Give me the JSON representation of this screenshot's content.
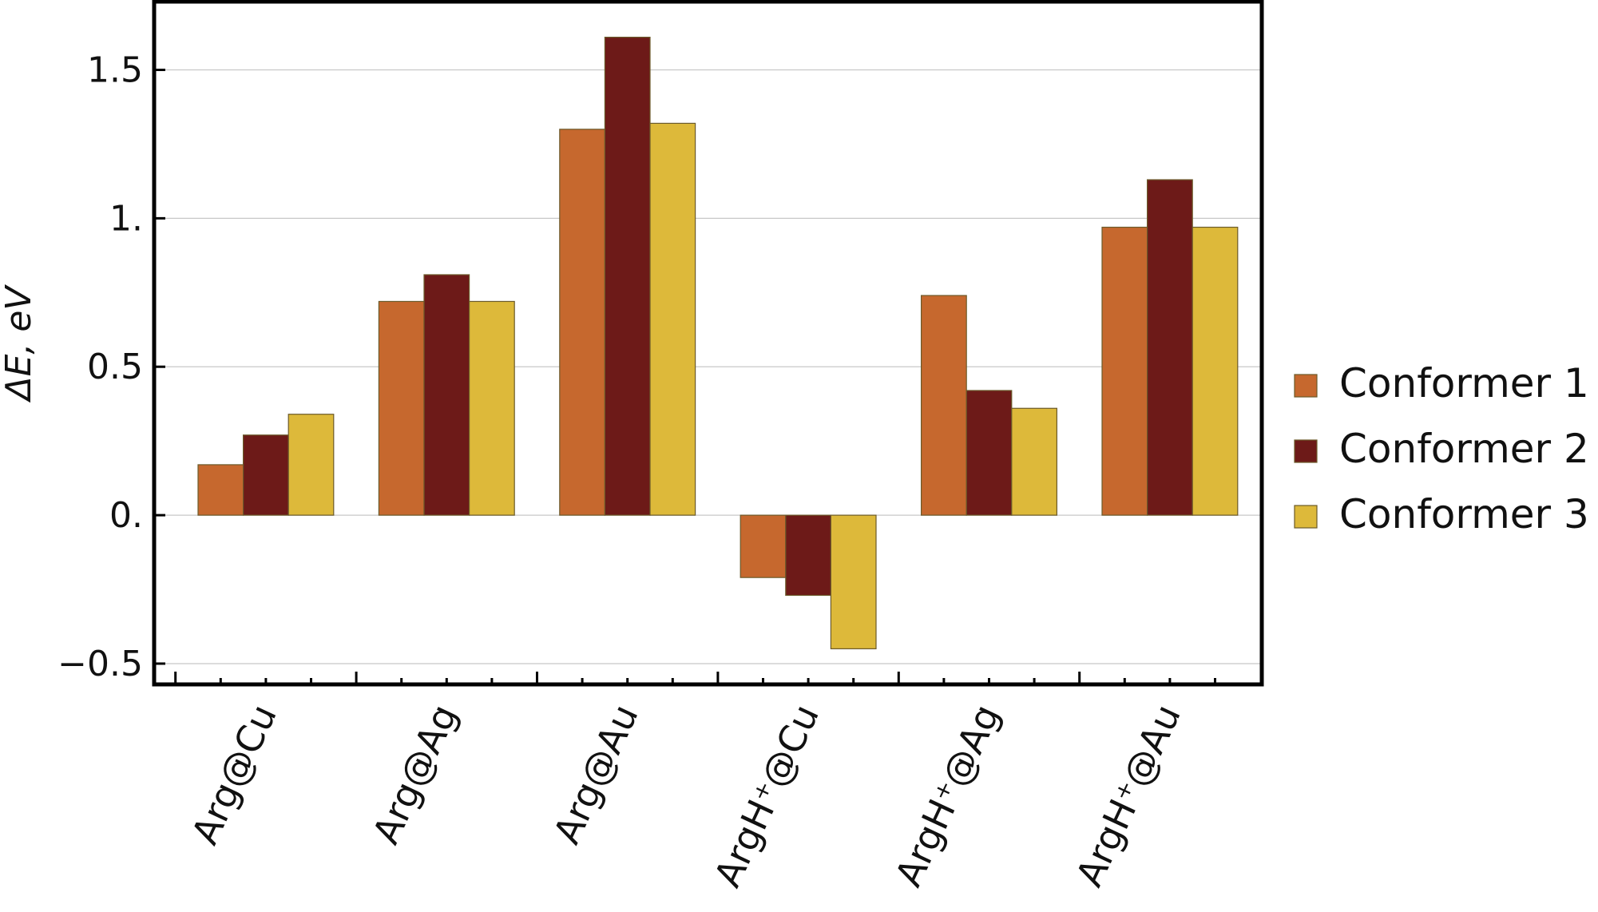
{
  "chart_data": {
    "type": "bar",
    "title": "",
    "xlabel": "",
    "ylabel": "ΔE, eV",
    "ylim": [
      -0.57,
      1.73
    ],
    "yticks": [
      {
        "value": -0.5,
        "label": "−0.5"
      },
      {
        "value": 0,
        "label": "0."
      },
      {
        "value": 0.5,
        "label": "0.5"
      },
      {
        "value": 1,
        "label": "1."
      },
      {
        "value": 1.5,
        "label": "1.5"
      }
    ],
    "grid": true,
    "legend_position": "right",
    "categories": [
      "Arg@Cu",
      "Arg@Ag",
      "Arg@Au",
      "ArgH⁺@Cu",
      "ArgH⁺@Ag",
      "ArgH⁺@Au"
    ],
    "series": [
      {
        "name": "Conformer 1",
        "color": "#c6682e",
        "values": [
          0.17,
          0.72,
          1.3,
          -0.21,
          0.74,
          0.97
        ]
      },
      {
        "name": "Conformer 2",
        "color": "#6d1a18",
        "values": [
          0.27,
          0.81,
          1.61,
          -0.27,
          0.42,
          1.13
        ]
      },
      {
        "name": "Conformer 3",
        "color": "#ddb93a",
        "values": [
          0.34,
          0.72,
          1.32,
          -0.45,
          0.36,
          0.97
        ]
      }
    ]
  }
}
